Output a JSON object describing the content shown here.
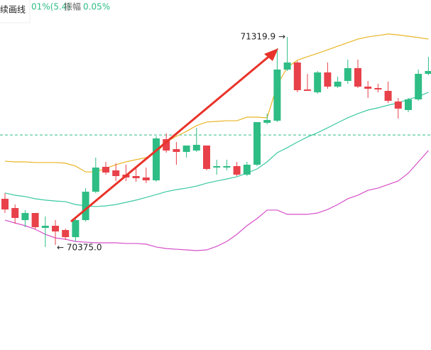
{
  "header": {
    "tool": "续画线",
    "change": "01%(5.4)",
    "amplitude_label": "振幅",
    "amplitude": "0.05%"
  },
  "chart_data": {
    "type": "candlestick",
    "ylim": [
      69911.9,
      71485.9
    ],
    "up_color": "#2ebd85",
    "down_color": "#e8414a",
    "open": [
      70591.9,
      70550.4,
      70496.1,
      70528.1,
      70461.0,
      70470.6,
      70451.4,
      70419.5,
      70496.1,
      70623.8,
      70735.6,
      70719.6,
      70700.5,
      70694.1,
      70687.7,
      70674.9,
      70860.1,
      70815.4,
      70802.6,
      70809.0,
      70831.4,
      70732.4,
      70732.4,
      70738.8,
      70700.5,
      70745.2,
      70933.5,
      70943.1,
      71173.0,
      71204.9,
      71083.6,
      71070.8,
      71160.2,
      71096.4,
      71121.9,
      71179.4,
      71096.4,
      71090.0,
      71077.2,
      71029.3,
      70991.0,
      71038.9,
      71153.8
    ],
    "high": [
      70617.5,
      70566.4,
      70540.8,
      70528.1,
      70512.1,
      70496.1,
      70457.8,
      70508.9,
      70639.8,
      70777.1,
      70757.9,
      70751.6,
      70745.2,
      70732.4,
      70732.4,
      70872.9,
      70885.7,
      70847.3,
      70831.4,
      70911.2,
      70831.4,
      70767.5,
      70767.5,
      70757.9,
      70757.9,
      70936.7,
      70975.1,
      71268.8,
      71319.9,
      71211.3,
      71153.8,
      71166.6,
      71204.9,
      71141.1,
      71217.7,
      71217.7,
      71121.9,
      71109.1,
      71118.7,
      71045.3,
      71045.3,
      71173.0,
      71230.5
    ],
    "low": [
      70528.1,
      70480.2,
      70464.2,
      70454.6,
      70375.0,
      70384.4,
      70406.7,
      70400.3,
      70489.8,
      70617.5,
      70700.5,
      70671.7,
      70671.7,
      70668.5,
      70662.2,
      70668.5,
      70799.4,
      70745.2,
      70777.1,
      70802.6,
      70719.6,
      70700.5,
      70719.6,
      70694.1,
      70694.1,
      70738.8,
      70927.2,
      70936.7,
      71166.6,
      71070.8,
      71077.2,
      71064.5,
      71086.8,
      71090.0,
      71109.1,
      71090.0,
      71045.3,
      71070.8,
      71022.9,
      70952.7,
      70981.4,
      71032.5,
      71147.5
    ],
    "close": [
      70544.0,
      70505.7,
      70528.1,
      70464.2,
      70470.6,
      70445.0,
      70419.5,
      70496.1,
      70623.8,
      70732.4,
      70710.1,
      70694.1,
      70687.7,
      70684.5,
      70674.9,
      70863.3,
      70809.0,
      70802.6,
      70831.4,
      70834.6,
      70726.0,
      70738.8,
      70738.8,
      70700.5,
      70745.2,
      70936.7,
      70946.3,
      71173.0,
      71204.9,
      71080.4,
      71077.2,
      71160.2,
      71096.4,
      71118.7,
      71179.4,
      71096.4,
      71086.8,
      71083.6,
      71032.5,
      70997.4,
      71038.9,
      71153.8,
      71166.6
    ],
    "bands": [
      {
        "color": "#e9b526",
        "values": [
          70761,
          70758,
          70758,
          70755,
          70755,
          70755,
          70752,
          70739,
          70713,
          70713,
          70729,
          70745,
          70758,
          70768,
          70777,
          70799,
          70847,
          70873,
          70895,
          70921,
          70937,
          70940,
          70943,
          70943,
          70959,
          70959,
          70956,
          71103,
          71183,
          71215,
          71231,
          71246,
          71262,
          71278,
          71294,
          71310,
          71320,
          71326,
          71333,
          71329,
          71323,
          71317,
          71310
        ]
      },
      {
        "color": "#3cc9a3",
        "values": [
          70618,
          70608,
          70602,
          70592,
          70586,
          70582,
          70579,
          70566,
          70560,
          70557,
          70560,
          70566,
          70576,
          70586,
          70598,
          70611,
          70624,
          70633,
          70640,
          70649,
          70662,
          70672,
          70681,
          70691,
          70707,
          70726,
          70758,
          70799,
          70822,
          70847,
          70870,
          70889,
          70911,
          70934,
          70956,
          70975,
          70991,
          71001,
          71013,
          71023,
          71039,
          71052,
          71071
        ]
      },
      {
        "color": "#d64fc8",
        "values": [
          70496,
          70483,
          70471,
          70455,
          70432,
          70416,
          70410,
          70400,
          70397,
          70394,
          70394,
          70394,
          70391,
          70391,
          70388,
          70375,
          70368,
          70365,
          70362,
          70359,
          70362,
          70378,
          70400,
          70432,
          70471,
          70503,
          70541,
          70541,
          70522,
          70522,
          70522,
          70528,
          70544,
          70566,
          70592,
          70608,
          70630,
          70640,
          70656,
          70672,
          70707,
          70758,
          70809
        ]
      }
    ],
    "price_line": 70879,
    "annotations": [
      "71319.9 →",
      "← 70375.0"
    ]
  }
}
